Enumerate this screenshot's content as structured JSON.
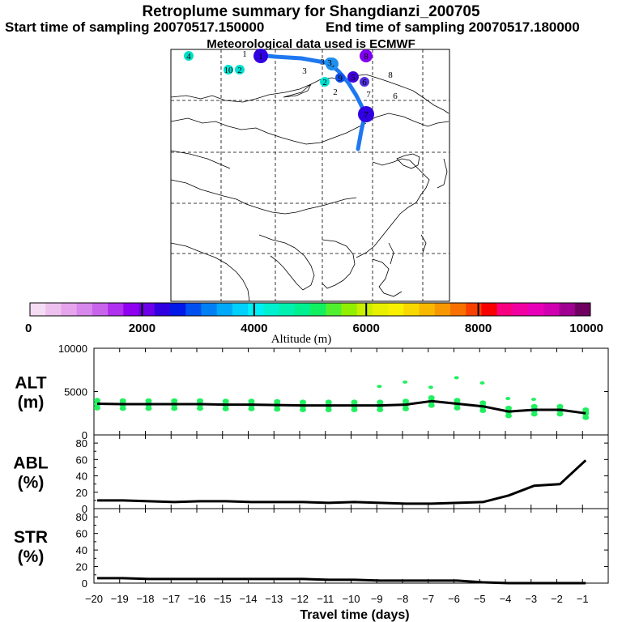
{
  "header": {
    "title": "Retroplume summary for Shangdianzi_200705",
    "start_label": "Start time of sampling 20070517.150000",
    "end_label": "End time of sampling 20070517.180000",
    "met_label": "Meteorological data used is ECMWF"
  },
  "colorbar": {
    "tick_labels": [
      "0",
      "2000",
      "4000",
      "6000",
      "8000",
      "10000"
    ],
    "axis_label": "Altitude (m)",
    "colors": [
      "#f4dcf4",
      "#eec0ee",
      "#e6a4ec",
      "#d888ec",
      "#c864ec",
      "#b030f0",
      "#9000f0",
      "#6c00e8",
      "#3000e0",
      "#0018e8",
      "#0050f0",
      "#0080f4",
      "#00a8f8",
      "#00d0fc",
      "#00f0f8",
      "#00f0d0",
      "#00f0b0",
      "#00f090",
      "#10f060",
      "#50f030",
      "#90f000",
      "#c8f000",
      "#e8f000",
      "#f8f000",
      "#f8d800",
      "#f8b800",
      "#f89800",
      "#f87000",
      "#f84000",
      "#f80000",
      "#f80080",
      "#f000a0",
      "#e800b8",
      "#d000b0",
      "#a00090",
      "#700060"
    ]
  },
  "map": {
    "trajectory_color": "#1e78f0",
    "cluster_labels": [
      {
        "label": "1",
        "color": "#3000e0"
      },
      {
        "label": "2",
        "color": "#00e0d0"
      },
      {
        "label": "3",
        "color": "#2090f0"
      },
      {
        "label": "4",
        "color": "#00e0c8"
      },
      {
        "label": "5",
        "color": "#4000d8"
      },
      {
        "label": "6",
        "color": "#5030e0"
      },
      {
        "label": "7",
        "color": "#3000e0"
      },
      {
        "label": "8",
        "color": "#8000f0"
      },
      {
        "label": "9",
        "color": "#1050e8"
      },
      {
        "label": "10",
        "color": "#00e0d0"
      }
    ]
  },
  "chart_data": [
    {
      "type": "line",
      "panel": "ALT",
      "ylabel_line1": "ALT",
      "ylabel_line2": "(m)",
      "ylim": [
        0,
        10000
      ],
      "ytick_labels": [
        "10000",
        "5000",
        "0"
      ],
      "x": [
        -19.875,
        -18.875,
        -17.875,
        -16.875,
        -15.875,
        -14.875,
        -13.875,
        -12.875,
        -11.875,
        -10.875,
        -9.875,
        -8.875,
        -7.875,
        -6.875,
        -5.875,
        -4.875,
        -3.875,
        -2.875,
        -1.875,
        -0.875
      ],
      "values": [
        3600,
        3550,
        3550,
        3550,
        3550,
        3500,
        3500,
        3450,
        3400,
        3400,
        3400,
        3400,
        3500,
        3900,
        3600,
        3300,
        2700,
        2900,
        2900,
        2500
      ],
      "scatter_color": "#20f060"
    },
    {
      "type": "line",
      "panel": "ABL",
      "ylabel_line1": "ABL",
      "ylabel_line2": "(%)",
      "ylim": [
        0,
        90
      ],
      "ytick_labels": [
        "80",
        "60",
        "40",
        "20",
        "0"
      ],
      "x": [
        -19.875,
        -18.875,
        -17.875,
        -16.875,
        -15.875,
        -14.875,
        -13.875,
        -12.875,
        -11.875,
        -10.875,
        -9.875,
        -8.875,
        -7.875,
        -6.875,
        -5.875,
        -4.875,
        -3.875,
        -2.875,
        -1.875,
        -0.875
      ],
      "values": [
        10,
        10,
        9,
        8,
        9,
        9,
        8,
        8,
        8,
        7,
        8,
        7,
        6,
        6,
        7,
        8,
        16,
        28,
        30,
        59
      ]
    },
    {
      "type": "line",
      "panel": "STR",
      "ylabel_line1": "STR",
      "ylabel_line2": "(%)",
      "ylim": [
        0,
        90
      ],
      "ytick_labels": [
        "80",
        "60",
        "40",
        "20",
        "0"
      ],
      "x": [
        -19.875,
        -18.875,
        -17.875,
        -16.875,
        -15.875,
        -14.875,
        -13.875,
        -12.875,
        -11.875,
        -10.875,
        -9.875,
        -8.875,
        -7.875,
        -6.875,
        -5.875,
        -4.875,
        -3.875,
        -2.875,
        -1.875,
        -0.875
      ],
      "values": [
        6,
        6,
        5,
        5,
        5,
        5,
        5,
        5,
        5,
        4,
        4,
        3,
        3,
        3,
        3,
        1,
        0,
        0,
        0,
        0
      ]
    }
  ],
  "xaxis": {
    "label": "Travel time (days)",
    "xlim": [
      -20,
      0
    ],
    "tick_labels": [
      "−20",
      "−19",
      "−18",
      "−17",
      "−16",
      "−15",
      "−14",
      "−13",
      "−12",
      "−11",
      "−10",
      "−9",
      "−8",
      "−7",
      "−6",
      "−5",
      "−4",
      "−3",
      "−2",
      "−1"
    ]
  }
}
